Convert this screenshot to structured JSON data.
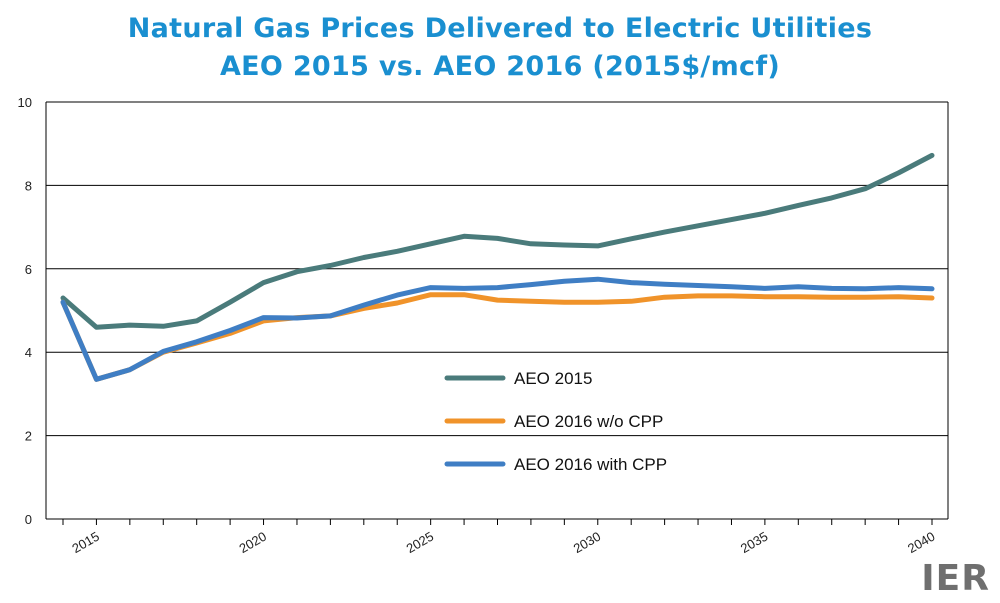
{
  "chart_data": {
    "type": "line",
    "title": "Natural Gas Prices Delivered to Electric Utilities",
    "subtitle": "AEO 2015 vs. AEO 2016 (2015$/mcf)",
    "xlabel": "",
    "ylabel": "",
    "xlim": [
      2014,
      2040
    ],
    "ylim": [
      0,
      10
    ],
    "y_ticks": [
      0,
      2,
      4,
      6,
      8,
      10
    ],
    "x_tick_labels": [
      "2015",
      "2020",
      "2025",
      "2030",
      "2035",
      "2040"
    ],
    "grid": "horizontal",
    "legend_position": "center",
    "x": [
      2014,
      2015,
      2016,
      2017,
      2018,
      2019,
      2020,
      2021,
      2022,
      2023,
      2024,
      2025,
      2026,
      2027,
      2028,
      2029,
      2030,
      2031,
      2032,
      2033,
      2034,
      2035,
      2036,
      2037,
      2038,
      2039,
      2040
    ],
    "series": [
      {
        "name": "AEO 2015",
        "color": "#4a7b7b",
        "values": [
          5.3,
          4.6,
          4.65,
          4.62,
          4.75,
          5.2,
          5.67,
          5.93,
          6.08,
          6.27,
          6.42,
          6.6,
          6.78,
          6.73,
          6.6,
          6.57,
          6.55,
          6.72,
          6.88,
          7.03,
          7.18,
          7.33,
          7.52,
          7.7,
          7.92,
          8.3,
          8.72
        ]
      },
      {
        "name": "AEO 2016 w/o CPP",
        "color": "#f0932a",
        "values": [
          5.2,
          3.35,
          3.58,
          4.0,
          4.22,
          4.45,
          4.75,
          4.83,
          4.87,
          5.05,
          5.18,
          5.38,
          5.38,
          5.25,
          5.22,
          5.2,
          5.2,
          5.22,
          5.32,
          5.35,
          5.35,
          5.33,
          5.33,
          5.32,
          5.32,
          5.33,
          5.3
        ]
      },
      {
        "name": "AEO 2016 with CPP",
        "color": "#3f7ec4",
        "values": [
          5.2,
          3.35,
          3.58,
          4.02,
          4.25,
          4.52,
          4.83,
          4.82,
          4.87,
          5.13,
          5.37,
          5.55,
          5.53,
          5.55,
          5.62,
          5.7,
          5.75,
          5.67,
          5.63,
          5.6,
          5.57,
          5.53,
          5.57,
          5.53,
          5.52,
          5.55,
          5.52
        ]
      }
    ]
  },
  "logo": "IER"
}
